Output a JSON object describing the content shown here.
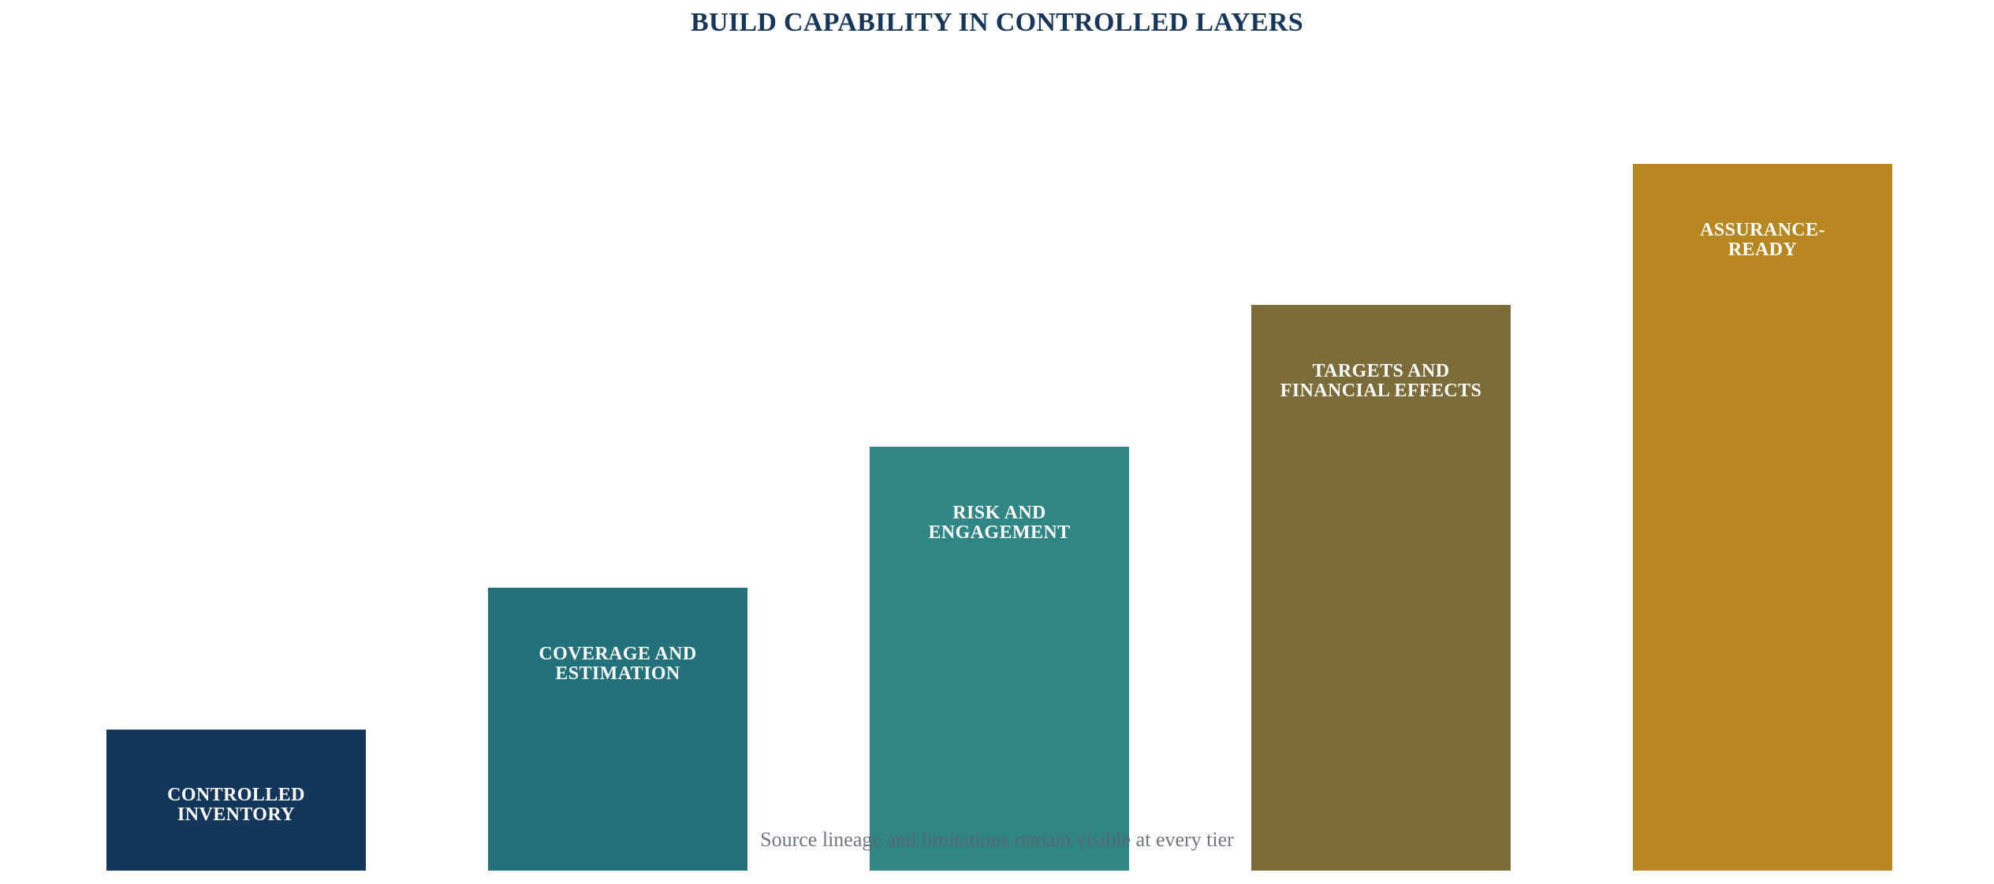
{
  "title": "BUILD CAPABILITY IN CONTROLLED LAYERS",
  "caption": "Source lineage and limitations remain visible at every tier",
  "steps": [
    {
      "label": "CONTROLLED\nINVENTORY",
      "color": "#14365a",
      "level": 1
    },
    {
      "label": "COVERAGE AND\nESTIMATION",
      "color": "#23717a",
      "level": 2
    },
    {
      "label": "RISK AND\nENGAGEMENT",
      "color": "#308585",
      "level": 3
    },
    {
      "label": "TARGETS AND\nFINANCIAL EFFECTS",
      "color": "#7b6c3a",
      "level": 4
    },
    {
      "label": "ASSURANCE-\nREADY",
      "color": "#b88722",
      "level": 5
    }
  ]
}
